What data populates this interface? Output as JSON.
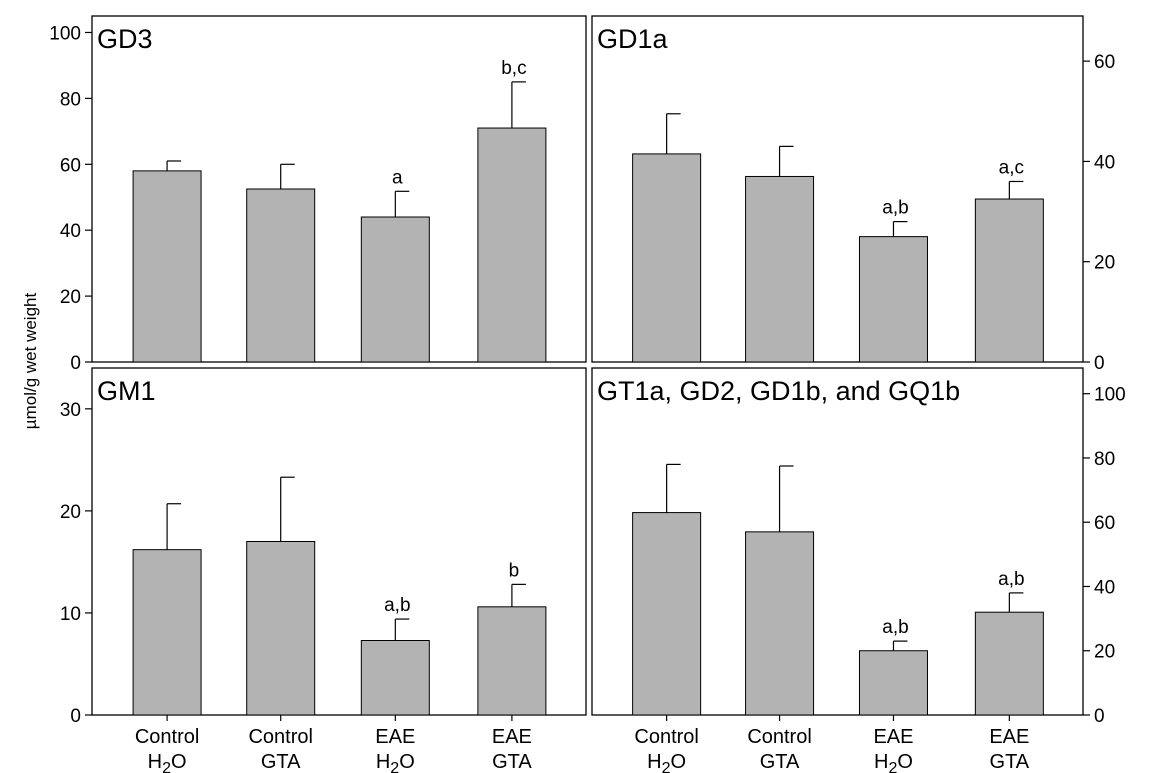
{
  "colors": {
    "bar_fill": "#b3b3b3",
    "stroke": "#000000"
  },
  "ylabel": "µmol/g wet weight",
  "categories": [
    {
      "line1": "Control",
      "line2": "H",
      "sub": "2",
      "line2b": "O"
    },
    {
      "line1": "Control",
      "line2": "GTA",
      "sub": "",
      "line2b": ""
    },
    {
      "line1": "EAE",
      "line2": "H",
      "sub": "2",
      "line2b": "O"
    },
    {
      "line1": "EAE",
      "line2": "GTA",
      "sub": "",
      "line2b": ""
    }
  ],
  "chart_data": [
    {
      "type": "bar",
      "title": "GD3",
      "categories": [
        "Control H2O",
        "Control GTA",
        "EAE H2O",
        "EAE GTA"
      ],
      "values": [
        58,
        52.5,
        44,
        71
      ],
      "errors": [
        3,
        7.5,
        7.8,
        14
      ],
      "annotations": [
        "",
        "",
        "a",
        "b,c"
      ],
      "ylim": [
        0,
        105
      ],
      "yticks": [
        0,
        20,
        40,
        60,
        80,
        100
      ],
      "axis_side": "left"
    },
    {
      "type": "bar",
      "title": "GD1a",
      "categories": [
        "Control H2O",
        "Control GTA",
        "EAE H2O",
        "EAE GTA"
      ],
      "values": [
        41.5,
        37,
        25,
        32.5
      ],
      "errors": [
        8,
        6,
        3,
        3.5
      ],
      "annotations": [
        "",
        "",
        "a,b",
        "a,c"
      ],
      "ylim": [
        0,
        69
      ],
      "yticks": [
        0,
        20,
        40,
        60
      ],
      "axis_side": "right"
    },
    {
      "type": "bar",
      "title": "GM1",
      "categories": [
        "Control H2O",
        "Control GTA",
        "EAE H2O",
        "EAE GTA"
      ],
      "values": [
        16.2,
        17,
        7.3,
        10.6
      ],
      "errors": [
        4.5,
        6.3,
        2.1,
        2.2
      ],
      "annotations": [
        "",
        "",
        "a,b",
        "b"
      ],
      "ylim": [
        0,
        34
      ],
      "yticks": [
        0,
        10,
        20,
        30
      ],
      "axis_side": "left"
    },
    {
      "type": "bar",
      "title": "GT1a, GD2, GD1b, and GQ1b",
      "categories": [
        "Control H2O",
        "Control GTA",
        "EAE H2O",
        "EAE GTA"
      ],
      "values": [
        63,
        57,
        20,
        32
      ],
      "errors": [
        15,
        20.5,
        3,
        6
      ],
      "annotations": [
        "",
        "",
        "a,b",
        "a,b"
      ],
      "ylim": [
        0,
        108
      ],
      "yticks": [
        0,
        20,
        40,
        60,
        80,
        100
      ],
      "axis_side": "right"
    }
  ]
}
